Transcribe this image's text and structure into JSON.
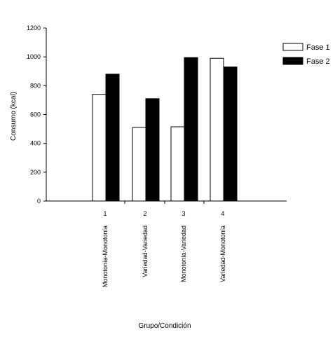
{
  "chart_data": {
    "type": "bar",
    "categories": [
      "1",
      "2",
      "3",
      "4"
    ],
    "category_sublabels": [
      "Monotonía-Monotonía",
      "Variedad-Variedad",
      "Monotonía-Variedad",
      "Variedad-Monotonía"
    ],
    "series": [
      {
        "name": "Fase 1",
        "values": [
          740,
          510,
          515,
          990
        ],
        "color": "#ffffff"
      },
      {
        "name": "Fase 2",
        "values": [
          880,
          710,
          995,
          930
        ],
        "color": "#000000"
      }
    ],
    "xlabel": "Grupo/Condición",
    "ylabel": "Consumo (kcal)",
    "ylim": [
      0,
      1200
    ],
    "yticks": [
      "0",
      "200",
      "400",
      "600",
      "800",
      "1000",
      "1200"
    ],
    "grid": false,
    "legend_position": "top-right"
  }
}
